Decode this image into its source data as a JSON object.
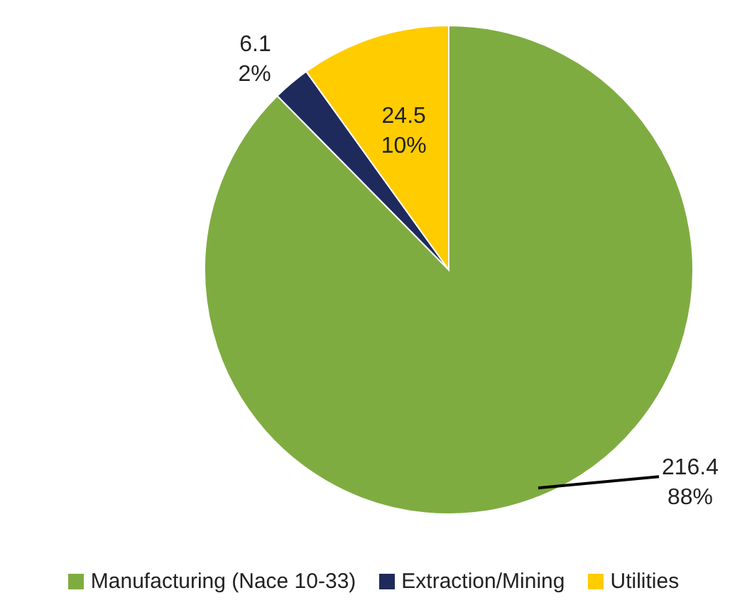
{
  "chart_data": {
    "type": "pie",
    "categories": [
      "Manufacturing (Nace 10-33)",
      "Extraction/Mining",
      "Utilities"
    ],
    "values": [
      216.4,
      6.1,
      24.5
    ],
    "colors": [
      "#7fac41",
      "#1f2a5c",
      "#ffcc00"
    ],
    "value_labels": [
      "216.4\n88%",
      "6.1\n2%",
      "24.5\n10%"
    ],
    "legend": "bottom"
  }
}
